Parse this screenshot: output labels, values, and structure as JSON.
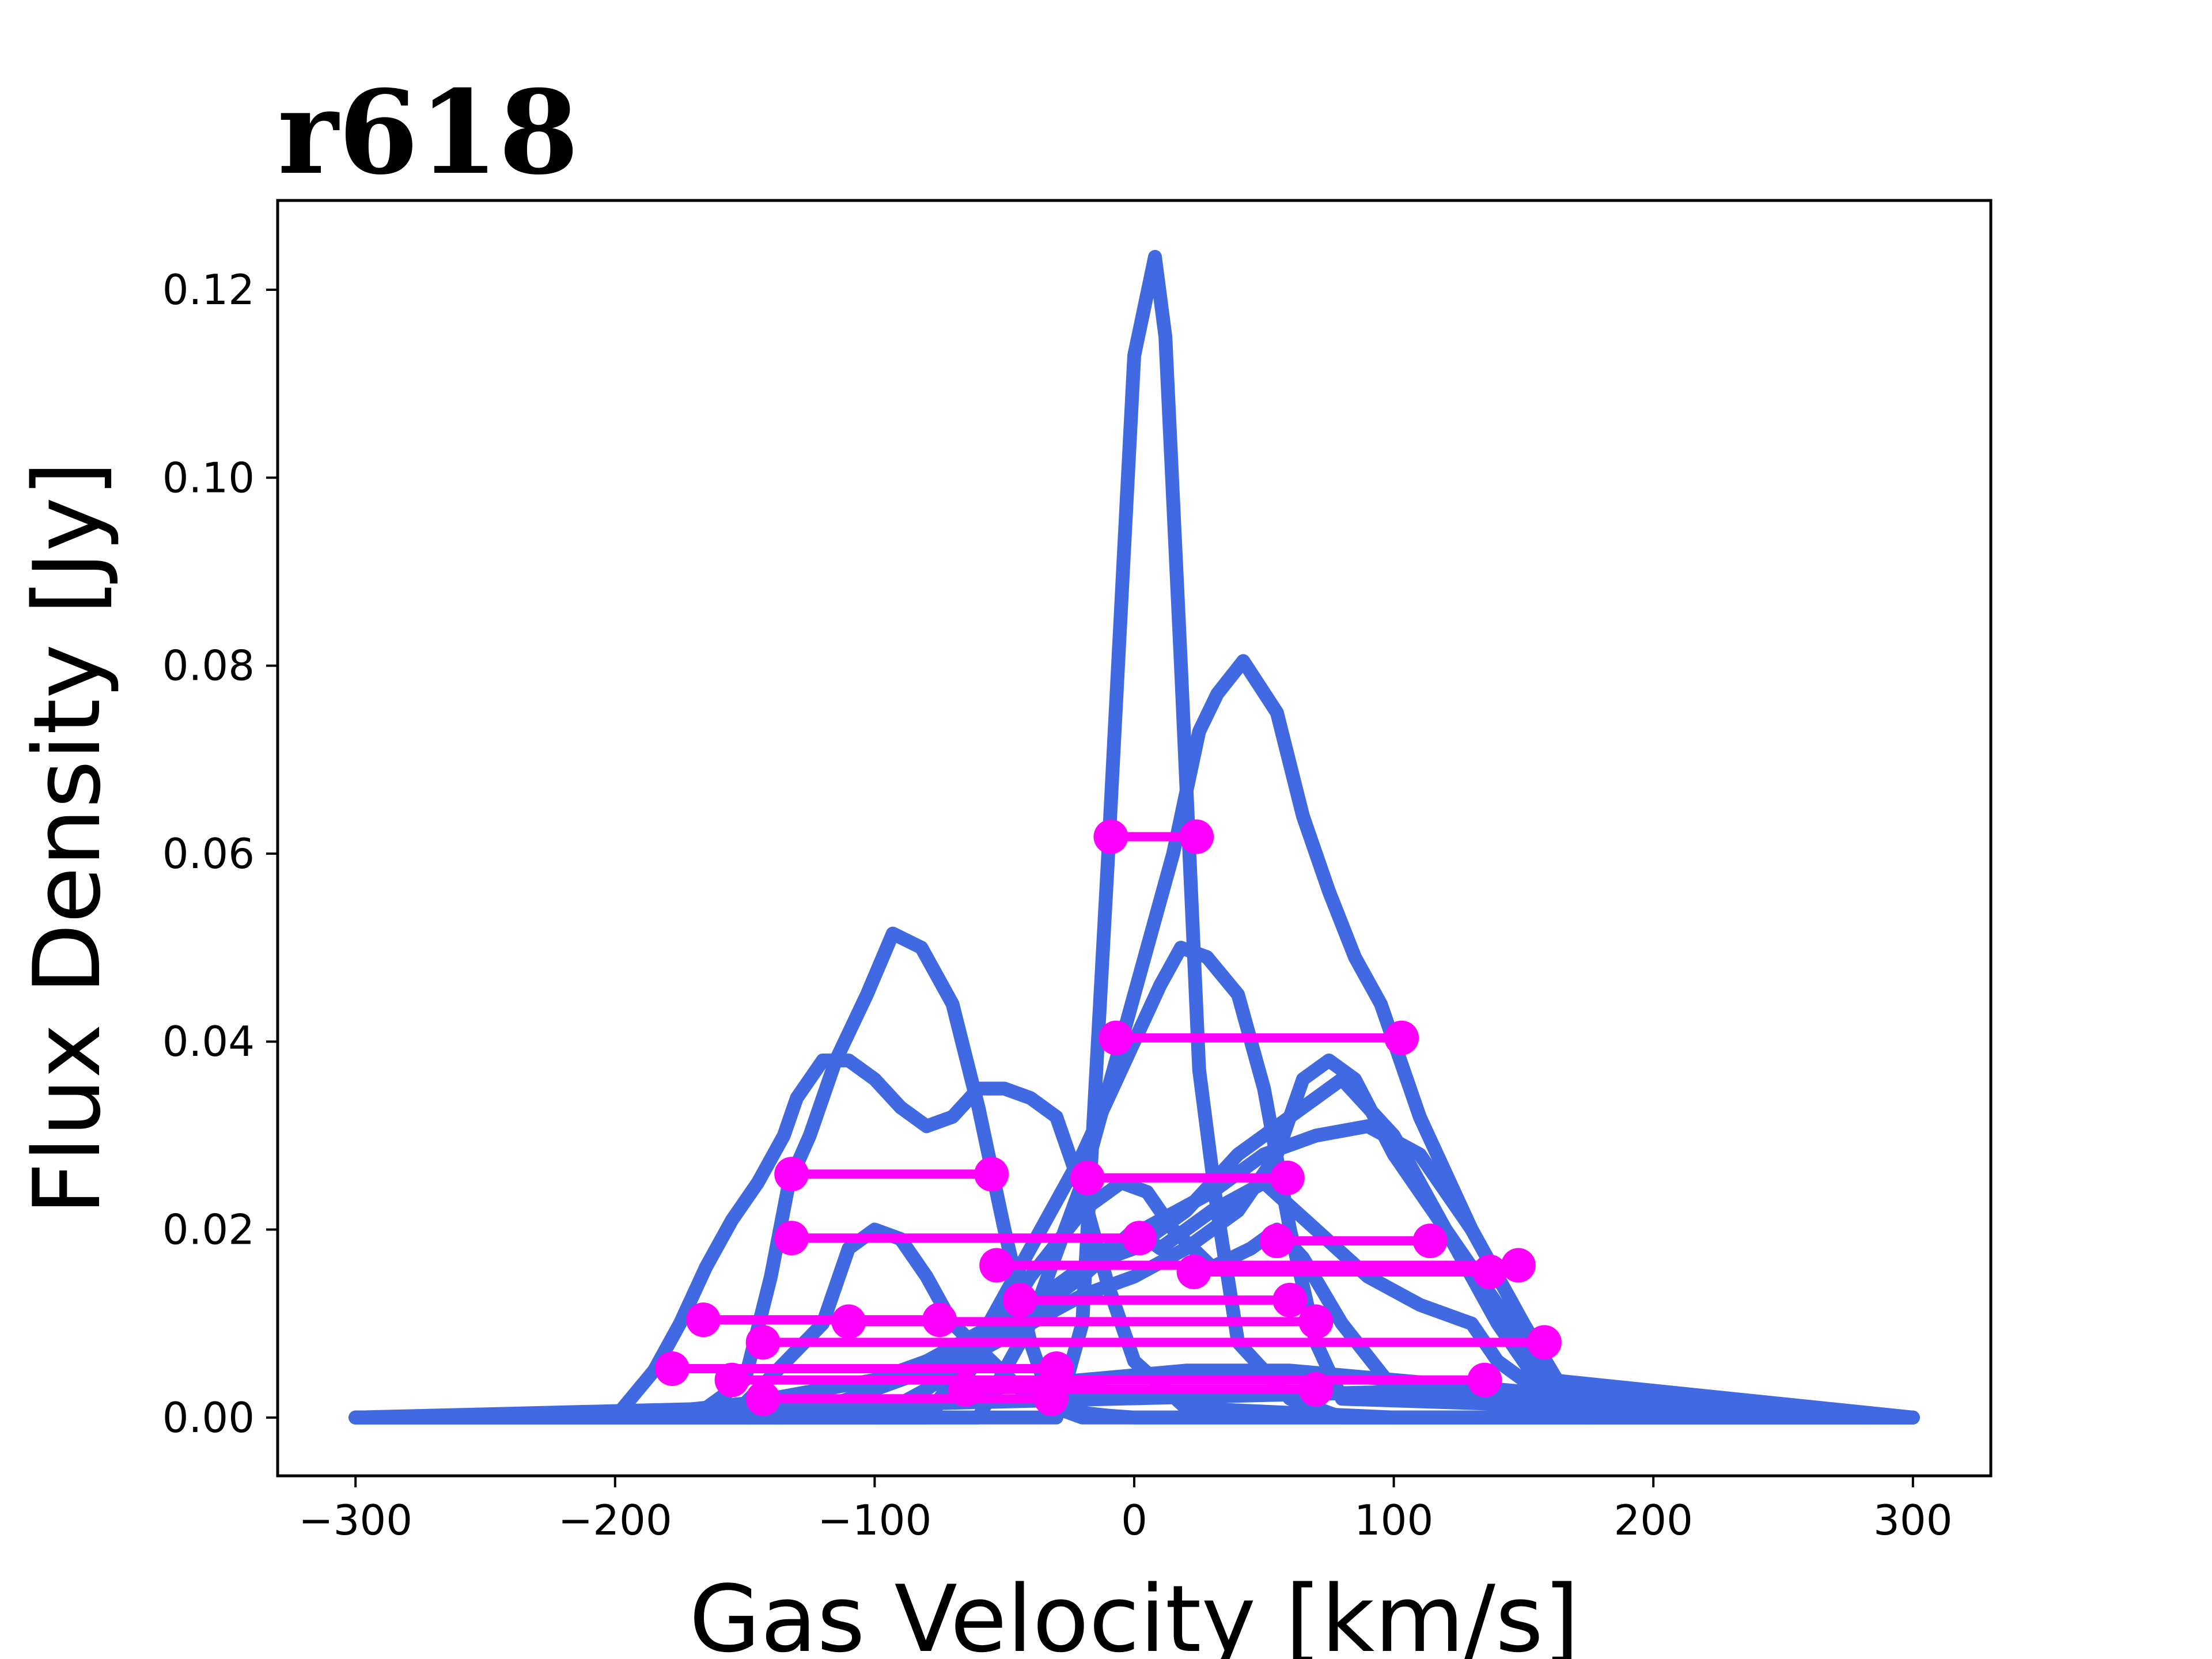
{
  "chart_data": {
    "type": "line",
    "title": "r618",
    "xlabel": "Gas Velocity [km/s]",
    "ylabel": "Flux Density [Jy]",
    "xlim": [
      -330,
      330
    ],
    "ylim": [
      -0.0062,
      0.1295
    ],
    "xticks": [
      -300,
      -200,
      -100,
      0,
      100,
      200,
      300
    ],
    "xtick_labels": [
      "−300",
      "−200",
      "−100",
      "0",
      "100",
      "200",
      "300"
    ],
    "yticks": [
      0.0,
      0.02,
      0.04,
      0.06,
      0.08,
      0.1,
      0.12
    ],
    "ytick_labels": [
      "0.00",
      "0.02",
      "0.04",
      "0.06",
      "0.08",
      "0.10",
      "0.12"
    ],
    "grid": false,
    "legend": "none",
    "colors": {
      "profile": "#4169e1",
      "width_marker": "#ff00ff"
    },
    "series": [
      {
        "x": [
          -300,
          -200,
          -150,
          -120,
          -110,
          -100,
          -90,
          -80,
          -70,
          -55,
          -40,
          -25,
          -20,
          -10,
          0,
          20,
          40,
          60,
          80,
          100,
          120,
          140,
          160,
          180,
          200,
          300
        ],
        "values": [
          0,
          0,
          0.0015,
          0.01,
          0.018,
          0.02,
          0.019,
          0.015,
          0.01,
          0.006,
          0.002,
          0.001,
          0.0005,
          0.0002,
          0,
          0,
          0,
          0,
          0,
          0,
          0,
          0,
          0,
          0,
          0,
          0
        ]
      },
      {
        "x": [
          -300,
          -200,
          -185,
          -175,
          -165,
          -155,
          -145,
          -135,
          -130,
          -120,
          -110,
          -100,
          -90,
          -80,
          -70,
          -60,
          -50,
          -40,
          -30,
          -20,
          -10,
          0,
          20,
          100,
          300
        ],
        "values": [
          0,
          0,
          0.005,
          0.01,
          0.016,
          0.021,
          0.025,
          0.03,
          0.034,
          0.038,
          0.038,
          0.036,
          0.033,
          0.031,
          0.032,
          0.035,
          0.035,
          0.034,
          0.032,
          0.024,
          0.014,
          0.006,
          0.001,
          0,
          0
        ]
      },
      {
        "x": [
          -300,
          -170,
          -150,
          -140,
          -133,
          -125,
          -115,
          -103,
          -93,
          -82,
          -70,
          -60,
          -50,
          -40,
          -35,
          -30,
          -20,
          0,
          300
        ],
        "values": [
          0,
          0,
          0.004,
          0.015,
          0.025,
          0.03,
          0.038,
          0.045,
          0.0515,
          0.05,
          0.044,
          0.033,
          0.02,
          0.008,
          0.004,
          0.001,
          0,
          0,
          0
        ]
      },
      {
        "x": [
          -300,
          -30,
          -20,
          -10,
          0,
          8,
          12,
          18,
          25,
          32,
          40,
          60,
          80,
          100,
          300
        ],
        "values": [
          0,
          0,
          0.01,
          0.06,
          0.113,
          0.1235,
          0.115,
          0.08,
          0.037,
          0.022,
          0.008,
          0.002,
          0,
          0,
          0
        ]
      },
      {
        "x": [
          -300,
          -60,
          -40,
          -20,
          0,
          15,
          25,
          32,
          42,
          55,
          65,
          75,
          85,
          95,
          110,
          130,
          150,
          165,
          175,
          300
        ],
        "values": [
          0,
          0,
          0.01,
          0.025,
          0.045,
          0.06,
          0.073,
          0.077,
          0.0805,
          0.075,
          0.064,
          0.056,
          0.049,
          0.044,
          0.032,
          0.02,
          0.01,
          0.002,
          0,
          0
        ]
      },
      {
        "x": [
          -300,
          -80,
          -60,
          -40,
          -20,
          0,
          10,
          18,
          28,
          40,
          50,
          60,
          70,
          80,
          300
        ],
        "values": [
          0,
          0,
          0.008,
          0.018,
          0.028,
          0.04,
          0.046,
          0.05,
          0.049,
          0.045,
          0.035,
          0.02,
          0.008,
          0.002,
          0
        ]
      },
      {
        "x": [
          -300,
          -160,
          -140,
          -120,
          -100,
          -80,
          -60,
          -40,
          -20,
          0,
          20,
          40,
          60,
          80,
          100,
          120,
          140,
          150,
          160,
          300
        ],
        "values": [
          0,
          0,
          0.002,
          0.003,
          0.004,
          0.006,
          0.009,
          0.012,
          0.016,
          0.018,
          0.022,
          0.028,
          0.032,
          0.036,
          0.03,
          0.02,
          0.012,
          0.008,
          0.004,
          0
        ]
      },
      {
        "x": [
          -300,
          -120,
          -100,
          -80,
          -60,
          -40,
          -20,
          0,
          20,
          40,
          55,
          65,
          75,
          85,
          100,
          120,
          140,
          160,
          300
        ],
        "values": [
          0,
          0,
          0.003,
          0.005,
          0.007,
          0.01,
          0.013,
          0.015,
          0.018,
          0.022,
          0.028,
          0.036,
          0.038,
          0.036,
          0.028,
          0.02,
          0.01,
          0.002,
          0
        ]
      },
      {
        "x": [
          -300,
          -130,
          -110,
          -90,
          -70,
          -50,
          -30,
          -10,
          10,
          30,
          50,
          70,
          90,
          110,
          130,
          150,
          165,
          300
        ],
        "values": [
          0,
          0,
          0.002,
          0.004,
          0.006,
          0.01,
          0.014,
          0.018,
          0.021,
          0.024,
          0.028,
          0.03,
          0.031,
          0.028,
          0.02,
          0.01,
          0.003,
          0
        ]
      },
      {
        "x": [
          -300,
          -80,
          -60,
          -40,
          -20,
          -5,
          5,
          15,
          30,
          45,
          55,
          65,
          80,
          100,
          300
        ],
        "values": [
          0,
          0,
          0.006,
          0.015,
          0.022,
          0.025,
          0.024,
          0.02,
          0.016,
          0.018,
          0.02,
          0.017,
          0.01,
          0.003,
          0
        ]
      },
      {
        "x": [
          -300,
          -100,
          -80,
          -60,
          -40,
          -20,
          0,
          10,
          30,
          50,
          70,
          90,
          110,
          130,
          140,
          150,
          160,
          170,
          300
        ],
        "values": [
          0,
          0,
          0.003,
          0.007,
          0.011,
          0.015,
          0.02,
          0.018,
          0.022,
          0.025,
          0.02,
          0.015,
          0.012,
          0.01,
          0.006,
          0.004,
          0.003,
          0.001,
          0
        ]
      },
      {
        "x": [
          -300,
          -100,
          -60,
          -20,
          20,
          60,
          100,
          140,
          180,
          300
        ],
        "values": [
          0,
          0,
          0.003,
          0.004,
          0.005,
          0.005,
          0.004,
          0.003,
          0.001,
          0
        ]
      },
      {
        "x": [
          -300,
          140,
          160,
          180,
          200,
          230,
          300
        ],
        "values": [
          0,
          0.003,
          0.0025,
          0.0015,
          0.0005,
          0.0002,
          0
        ]
      }
    ],
    "width_markers": [
      {
        "x": [
          -9,
          24
        ],
        "y": 0.0618
      },
      {
        "x": [
          -7,
          103
        ],
        "y": 0.0404
      },
      {
        "x": [
          -132,
          -55
        ],
        "y": 0.0259
      },
      {
        "x": [
          -18,
          59
        ],
        "y": 0.0255
      },
      {
        "x": [
          -132,
          2
        ],
        "y": 0.0191
      },
      {
        "x": [
          55,
          114
        ],
        "y": 0.0188
      },
      {
        "x": [
          -53,
          148
        ],
        "y": 0.0162
      },
      {
        "x": [
          23,
          137
        ],
        "y": 0.0155
      },
      {
        "x": [
          -166,
          -75
        ],
        "y": 0.0104
      },
      {
        "x": [
          -44,
          60
        ],
        "y": 0.0125
      },
      {
        "x": [
          -110,
          70
        ],
        "y": 0.0102
      },
      {
        "x": [
          -143,
          158
        ],
        "y": 0.008
      },
      {
        "x": [
          -178,
          -30
        ],
        "y": 0.0052
      },
      {
        "x": [
          -155,
          135
        ],
        "y": 0.004
      },
      {
        "x": [
          -143,
          -32
        ],
        "y": 0.002
      },
      {
        "x": [
          -65,
          70
        ],
        "y": 0.003
      }
    ]
  }
}
